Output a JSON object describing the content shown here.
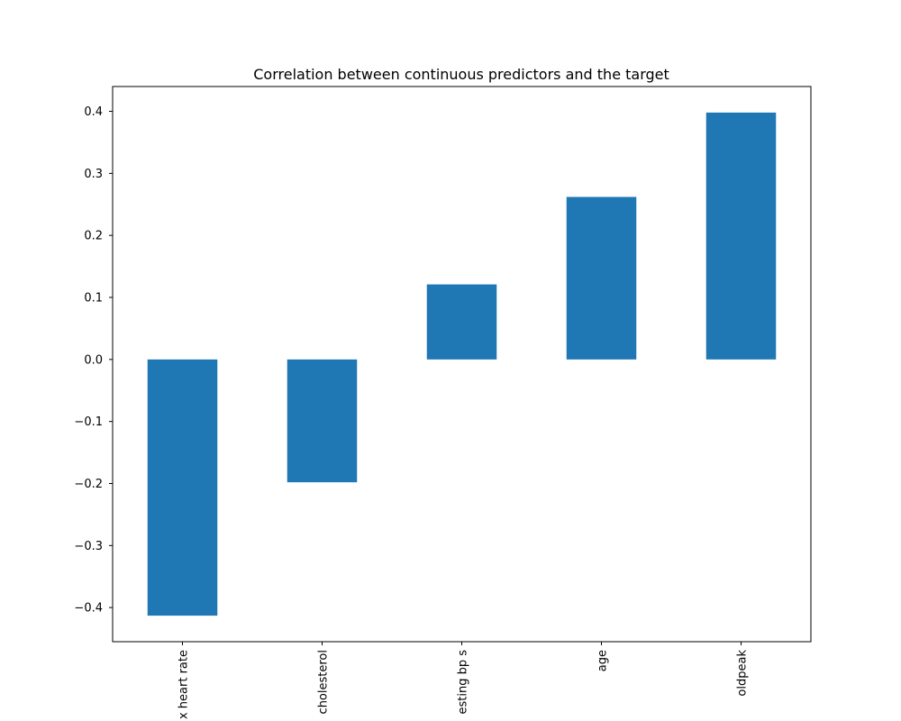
{
  "chart_data": {
    "type": "bar",
    "title": "Correlation between continuous predictors and the target",
    "categories": [
      "max heart rate",
      "cholesterol",
      "resting bp s",
      "age",
      "oldpeak"
    ],
    "visible_category_labels": [
      "x heart rate",
      "cholesterol",
      "esting bp s",
      "age",
      "oldpeak"
    ],
    "values": [
      -0.413,
      -0.198,
      0.121,
      0.262,
      0.398
    ],
    "xlabel": "",
    "ylabel": "",
    "ylim": [
      -0.455,
      0.44
    ],
    "yticks": [
      -0.4,
      -0.3,
      -0.2,
      -0.1,
      0.0,
      0.1,
      0.2,
      0.3,
      0.4
    ],
    "ytick_labels": [
      "−0.4",
      "−0.3",
      "−0.2",
      "−0.1",
      "0.0",
      "0.1",
      "0.2",
      "0.3",
      "0.4"
    ],
    "grid": false,
    "legend": "none",
    "bar_color": "#1f77b4"
  }
}
